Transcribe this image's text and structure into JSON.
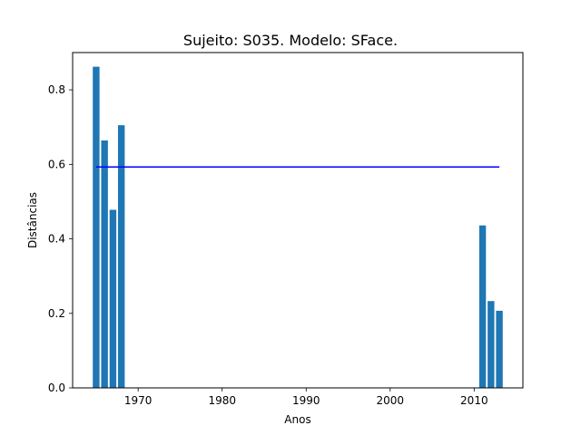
{
  "chart_data": {
    "type": "bar",
    "title": "Sujeito: S035. Modelo: SFace.",
    "xlabel": "Anos",
    "ylabel": "Distâncias",
    "x": [
      1965,
      1966,
      1967,
      1968,
      2011,
      2012,
      2013
    ],
    "values": [
      0.862,
      0.664,
      0.478,
      0.705,
      0.436,
      0.233,
      0.207
    ],
    "xlim": [
      1962.2,
      2015.8
    ],
    "ylim": [
      0,
      0.9
    ],
    "xticks": [
      1970,
      1980,
      1990,
      2000,
      2010
    ],
    "yticks": [
      0.0,
      0.2,
      0.4,
      0.6,
      0.8
    ],
    "yticklabels": [
      "0.0",
      "0.2",
      "0.4",
      "0.6",
      "0.8"
    ],
    "reference_line": {
      "y": 0.593,
      "x_start": 1965,
      "x_end": 2013,
      "color": "#0000ff"
    },
    "bar_color": "#1f77b4",
    "grid": false,
    "legend": false
  }
}
